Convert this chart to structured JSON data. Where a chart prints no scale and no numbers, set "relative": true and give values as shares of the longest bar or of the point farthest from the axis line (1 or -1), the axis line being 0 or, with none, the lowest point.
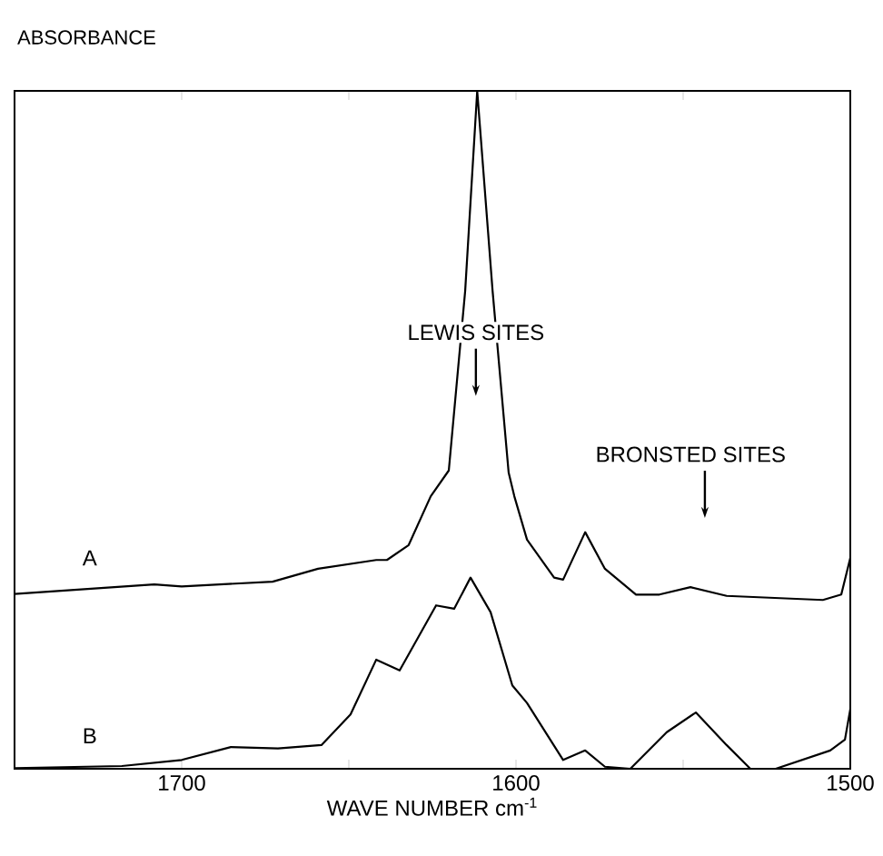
{
  "chart_data": {
    "type": "line",
    "xlabel": "WAVE NUMBER cm$^{-1}$",
    "ylabel": "ABSORBANCE",
    "relative": true,
    "tick_labels": "x",
    "xlim": [
      1750,
      1500
    ],
    "xticks": [
      1700,
      {
        "value": 1650,
        "label": null
      },
      1600,
      {
        "value": 1550,
        "label": null
      },
      1500
    ],
    "series": [
      {
        "name": "A",
        "color": "#000000",
        "x": [
          1750,
          1708.2,
          1700,
          1672.8,
          1659.2,
          1641.8,
          1638.6,
          1632.1,
          1625.5,
          1620.1,
          1615.2,
          1611.6,
          1607,
          1602.2,
          1600.5,
          1596.7,
          1588.6,
          1585.9,
          1579.3,
          1573.4,
          1564.1,
          1557.1,
          1547.8,
          1537,
          1508.2,
          1502.7,
          1500
        ],
        "values": [
          0.258,
          0.272,
          0.269,
          0.276,
          0.295,
          0.308,
          0.308,
          0.33,
          0.402,
          0.44,
          0.705,
          1.0,
          0.705,
          0.437,
          0.402,
          0.338,
          0.282,
          0.279,
          0.349,
          0.295,
          0.257,
          0.257,
          0.268,
          0.255,
          0.249,
          0.257,
          0.311
        ]
      },
      {
        "name": "B",
        "color": "#000000",
        "x": [
          1750,
          1717.9,
          1700,
          1685.3,
          1671.2,
          1658.2,
          1649.5,
          1641.8,
          1634.8,
          1623.9,
          1618.5,
          1613.6,
          1607.6,
          1601.1,
          1596.7,
          1585.9,
          1579.3,
          1573.4,
          1565.8,
          1554.9,
          1546.2,
          1537,
          1529.9,
          1522.3,
          1506,
          1501.6,
          1500
        ],
        "values": [
          0.001,
          0.004,
          0.013,
          0.032,
          0.03,
          0.035,
          0.08,
          0.161,
          0.145,
          0.241,
          0.236,
          0.282,
          0.231,
          0.123,
          0.097,
          0.013,
          0.027,
          0.003,
          0.0,
          0.054,
          0.083,
          0.035,
          0.0,
          0.0,
          0.027,
          0.043,
          0.088
        ]
      }
    ],
    "annotations": [
      "LEWIS SITES",
      "BRONSTED SITES"
    ],
    "grid": false,
    "legend": false
  }
}
